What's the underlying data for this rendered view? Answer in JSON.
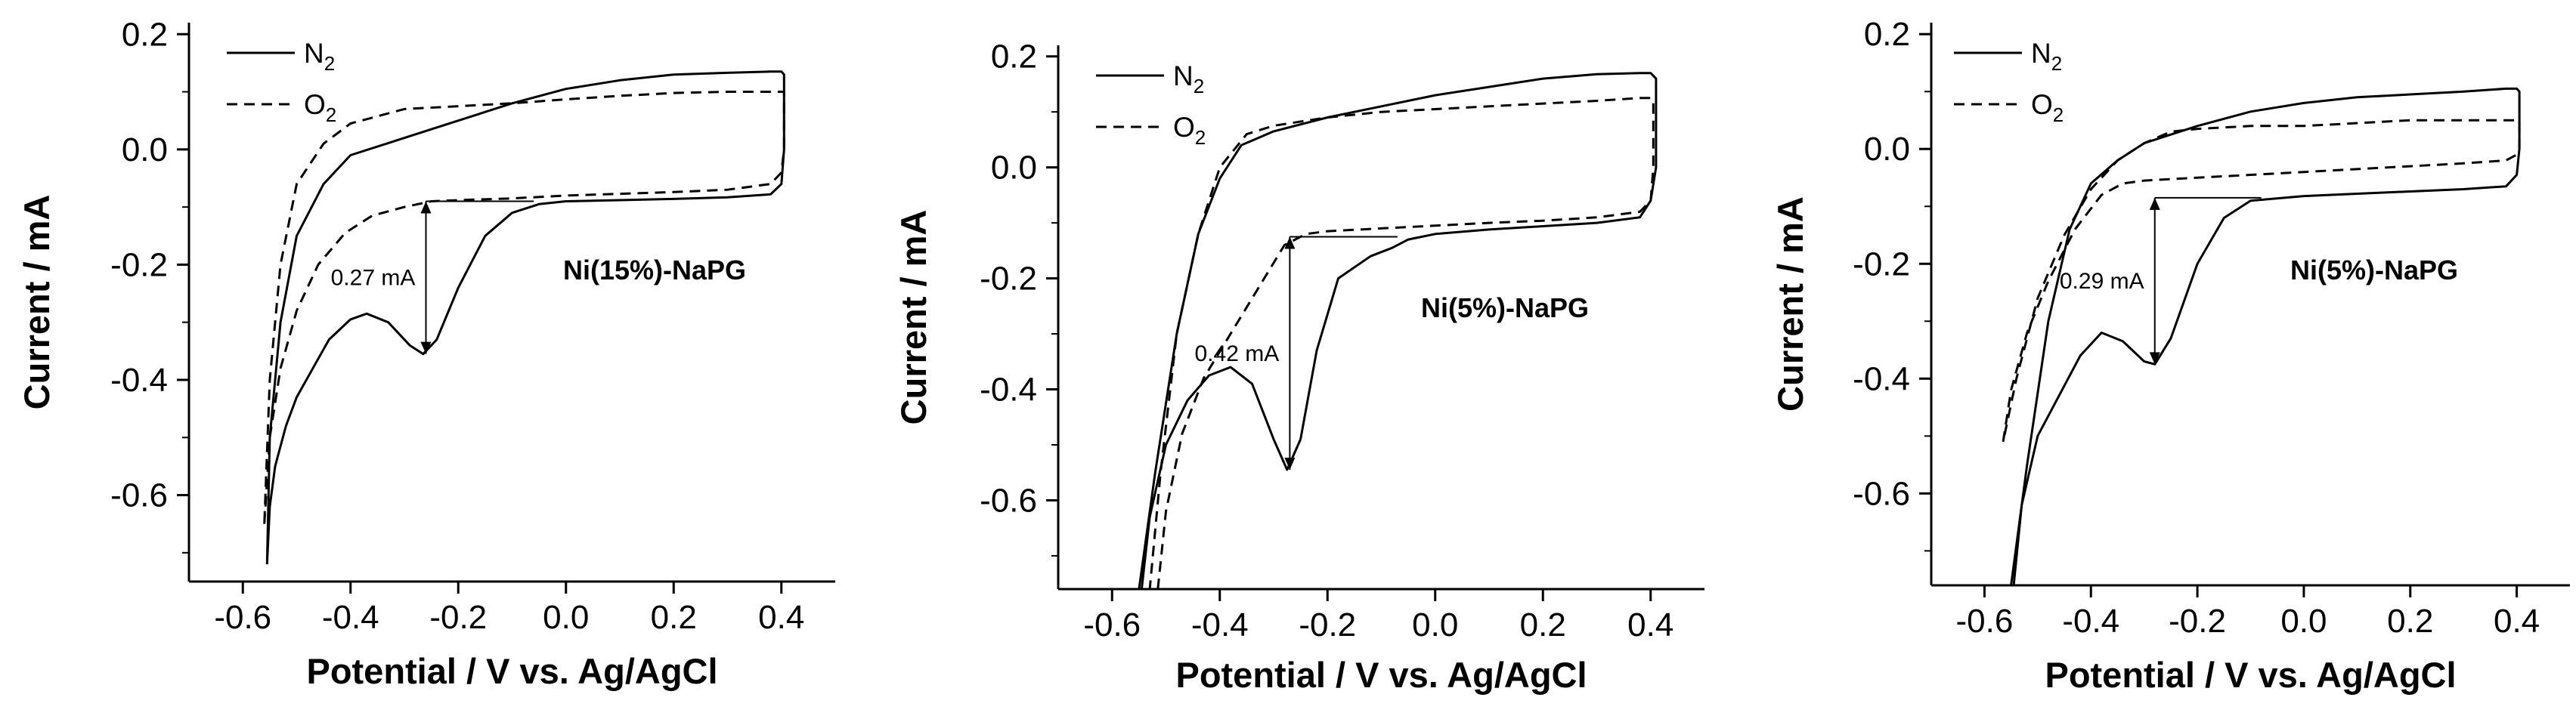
{
  "chart_data": [
    {
      "type": "line",
      "title": "",
      "xlabel": "Potential / V vs. Ag/AgCl",
      "ylabel": "Current / mA",
      "xlim": [
        -0.7,
        0.5
      ],
      "ylim": [
        -0.75,
        0.22
      ],
      "xticks": [
        "-0.6",
        "-0.4",
        "-0.2",
        "0.0",
        "0.2",
        "0.4"
      ],
      "yticks": [
        "0.2",
        "0.0",
        "-0.2",
        "-0.4",
        "-0.6"
      ],
      "grid": false,
      "legend_position": "top-left",
      "sample_label": "Ni(15%)-NaPG",
      "annotation": {
        "text": "0.27 mA",
        "x": -0.26,
        "y_top": -0.09,
        "y_bottom": -0.355
      },
      "series": [
        {
          "name": "N2",
          "label_main": "N",
          "label_sub": "2",
          "style": "solid",
          "x": [
            -0.555,
            -0.55,
            -0.54,
            -0.52,
            -0.5,
            -0.47,
            -0.44,
            -0.4,
            -0.37,
            -0.33,
            -0.29,
            -0.265,
            -0.24,
            -0.2,
            -0.15,
            -0.1,
            -0.05,
            0.0,
            0.1,
            0.2,
            0.3,
            0.38,
            0.4,
            0.405,
            0.405,
            0.4,
            0.38,
            0.3,
            0.2,
            0.1,
            0.0,
            -0.1,
            -0.2,
            -0.3,
            -0.4,
            -0.45,
            -0.5,
            -0.53,
            -0.55,
            -0.555
          ],
          "y": [
            -0.72,
            -0.62,
            -0.55,
            -0.48,
            -0.43,
            -0.38,
            -0.33,
            -0.295,
            -0.285,
            -0.3,
            -0.34,
            -0.355,
            -0.33,
            -0.24,
            -0.15,
            -0.11,
            -0.095,
            -0.09,
            -0.088,
            -0.086,
            -0.083,
            -0.078,
            -0.06,
            0.0,
            0.13,
            0.135,
            0.135,
            0.133,
            0.13,
            0.12,
            0.105,
            0.08,
            0.05,
            0.02,
            -0.01,
            -0.06,
            -0.15,
            -0.3,
            -0.5,
            -0.72
          ]
        },
        {
          "name": "O2",
          "label_main": "O",
          "label_sub": "2",
          "style": "dashed",
          "x": [
            -0.56,
            -0.55,
            -0.53,
            -0.5,
            -0.46,
            -0.41,
            -0.36,
            -0.3,
            -0.25,
            -0.2,
            -0.1,
            0.0,
            0.1,
            0.2,
            0.3,
            0.38,
            0.4,
            0.405,
            0.405,
            0.4,
            0.38,
            0.3,
            0.2,
            0.1,
            0.0,
            -0.1,
            -0.2,
            -0.3,
            -0.4,
            -0.45,
            -0.5,
            -0.53,
            -0.55,
            -0.56
          ],
          "y": [
            -0.65,
            -0.5,
            -0.38,
            -0.28,
            -0.2,
            -0.145,
            -0.115,
            -0.1,
            -0.09,
            -0.088,
            -0.085,
            -0.08,
            -0.077,
            -0.074,
            -0.07,
            -0.06,
            -0.04,
            0.0,
            0.1,
            0.1,
            0.1,
            0.1,
            0.098,
            0.093,
            0.087,
            0.08,
            0.075,
            0.07,
            0.045,
            0.01,
            -0.06,
            -0.2,
            -0.4,
            -0.65
          ]
        }
      ]
    },
    {
      "type": "line",
      "title": "",
      "xlabel": "Potential / V vs. Ag/AgCl",
      "ylabel": "Current / mA",
      "xlim": [
        -0.7,
        0.5
      ],
      "ylim": [
        -0.76,
        0.22
      ],
      "xticks": [
        "-0.6",
        "-0.4",
        "-0.2",
        "0.0",
        "0.2",
        "0.4"
      ],
      "yticks": [
        "0.2",
        "0.0",
        "-0.2",
        "-0.4",
        "-0.6"
      ],
      "grid": false,
      "legend_position": "top-left",
      "sample_label": "Ni(5%)-NaPG",
      "annotation": {
        "text": "0.42 mA",
        "x": -0.27,
        "y_top": -0.125,
        "y_bottom": -0.545
      },
      "series": [
        {
          "name": "N2",
          "label_main": "N",
          "label_sub": "2",
          "style": "solid",
          "x": [
            -0.545,
            -0.53,
            -0.5,
            -0.46,
            -0.42,
            -0.38,
            -0.34,
            -0.3,
            -0.275,
            -0.25,
            -0.22,
            -0.18,
            -0.12,
            -0.08,
            -0.05,
            0.0,
            0.1,
            0.2,
            0.3,
            0.38,
            0.4,
            0.41,
            0.41,
            0.4,
            0.38,
            0.3,
            0.2,
            0.1,
            0.0,
            -0.1,
            -0.2,
            -0.3,
            -0.36,
            -0.4,
            -0.44,
            -0.48,
            -0.52,
            -0.55
          ],
          "y": [
            -0.76,
            -0.63,
            -0.5,
            -0.42,
            -0.375,
            -0.36,
            -0.39,
            -0.49,
            -0.545,
            -0.49,
            -0.33,
            -0.2,
            -0.16,
            -0.145,
            -0.13,
            -0.12,
            -0.112,
            -0.106,
            -0.1,
            -0.09,
            -0.06,
            0.0,
            0.16,
            0.17,
            0.17,
            0.168,
            0.16,
            0.145,
            0.13,
            0.11,
            0.09,
            0.065,
            0.04,
            -0.02,
            -0.12,
            -0.3,
            -0.55,
            -0.76
          ]
        },
        {
          "name": "O2",
          "label_main": "O",
          "label_sub": "2",
          "style": "dashed",
          "x": [
            -0.515,
            -0.5,
            -0.47,
            -0.43,
            -0.38,
            -0.33,
            -0.28,
            -0.24,
            -0.2,
            -0.1,
            0.0,
            0.1,
            0.2,
            0.3,
            0.38,
            0.4,
            0.405,
            0.405,
            0.4,
            0.38,
            0.3,
            0.2,
            0.1,
            0.0,
            -0.1,
            -0.2,
            -0.3,
            -0.35,
            -0.4,
            -0.44,
            -0.48,
            -0.51,
            -0.53
          ],
          "y": [
            -0.76,
            -0.62,
            -0.48,
            -0.38,
            -0.3,
            -0.22,
            -0.14,
            -0.12,
            -0.115,
            -0.11,
            -0.105,
            -0.1,
            -0.096,
            -0.09,
            -0.08,
            -0.06,
            0.0,
            0.12,
            0.125,
            0.125,
            0.12,
            0.115,
            0.11,
            0.105,
            0.1,
            0.09,
            0.075,
            0.06,
            0.0,
            -0.12,
            -0.3,
            -0.55,
            -0.76
          ]
        }
      ]
    },
    {
      "type": "line",
      "title": "",
      "xlabel": "Potential / V vs. Ag/AgCl",
      "ylabel": "Current / mA",
      "xlim": [
        -0.7,
        0.5
      ],
      "ylim": [
        -0.76,
        0.22
      ],
      "xticks": [
        "-0.6",
        "-0.4",
        "-0.2",
        "0.0",
        "0.2",
        "0.4"
      ],
      "yticks": [
        "0.2",
        "0.0",
        "-0.2",
        "-0.4",
        "-0.6"
      ],
      "grid": false,
      "legend_position": "top-left",
      "sample_label": "Ni(5%)-NaPG",
      "annotation": {
        "text": "0.29 mA",
        "x": -0.28,
        "y_top": -0.085,
        "y_bottom": -0.375
      },
      "series": [
        {
          "name": "N2",
          "label_main": "N",
          "label_sub": "2",
          "style": "solid",
          "x": [
            -0.545,
            -0.53,
            -0.5,
            -0.46,
            -0.42,
            -0.38,
            -0.34,
            -0.3,
            -0.28,
            -0.25,
            -0.2,
            -0.15,
            -0.1,
            0.0,
            0.1,
            0.2,
            0.3,
            0.38,
            0.4,
            0.405,
            0.405,
            0.4,
            0.38,
            0.3,
            0.2,
            0.1,
            0.0,
            -0.1,
            -0.2,
            -0.3,
            -0.35,
            -0.4,
            -0.44,
            -0.48,
            -0.52,
            -0.55
          ],
          "y": [
            -0.76,
            -0.62,
            -0.5,
            -0.43,
            -0.36,
            -0.32,
            -0.335,
            -0.37,
            -0.375,
            -0.33,
            -0.2,
            -0.12,
            -0.09,
            -0.082,
            -0.078,
            -0.074,
            -0.07,
            -0.065,
            -0.045,
            0.0,
            0.1,
            0.105,
            0.105,
            0.1,
            0.095,
            0.09,
            0.08,
            0.065,
            0.04,
            0.01,
            -0.02,
            -0.06,
            -0.14,
            -0.3,
            -0.55,
            -0.76
          ]
        },
        {
          "name": "O2",
          "label_main": "O",
          "label_sub": "2",
          "style": "dashed",
          "x": [
            -0.565,
            -0.55,
            -0.52,
            -0.48,
            -0.43,
            -0.38,
            -0.34,
            -0.3,
            -0.2,
            -0.1,
            0.0,
            0.1,
            0.2,
            0.3,
            0.38,
            0.4,
            0.405,
            0.405,
            0.4,
            0.38,
            0.3,
            0.2,
            0.1,
            0.0,
            -0.1,
            -0.2,
            -0.25,
            -0.3,
            -0.35,
            -0.4,
            -0.45,
            -0.5,
            -0.54,
            -0.565
          ],
          "y": [
            -0.51,
            -0.42,
            -0.32,
            -0.23,
            -0.14,
            -0.08,
            -0.06,
            -0.055,
            -0.05,
            -0.045,
            -0.04,
            -0.035,
            -0.03,
            -0.025,
            -0.02,
            -0.01,
            0.0,
            0.05,
            0.05,
            0.05,
            0.05,
            0.05,
            0.045,
            0.04,
            0.04,
            0.035,
            0.03,
            0.01,
            -0.02,
            -0.07,
            -0.15,
            -0.26,
            -0.4,
            -0.51
          ]
        }
      ]
    }
  ]
}
